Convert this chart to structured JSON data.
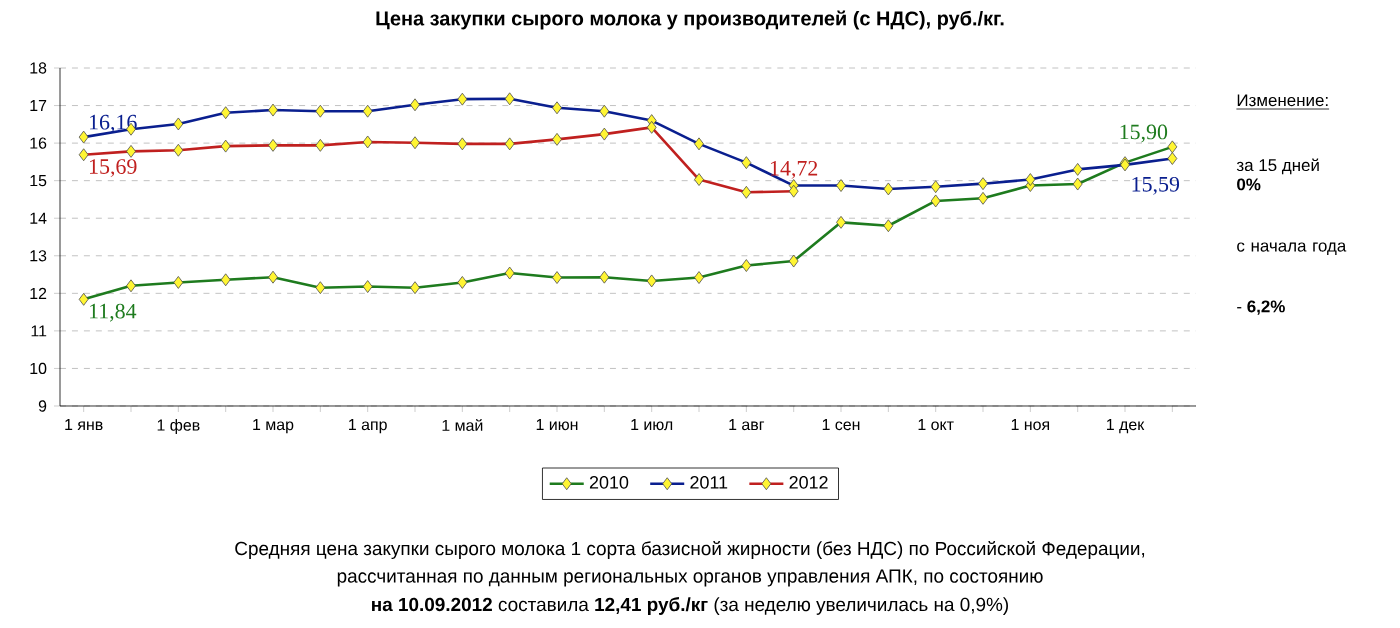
{
  "chart_data": {
    "type": "line",
    "title": "Цена закупки сырого молока у производителей (с НДС), руб./кг.",
    "categories": [
      "1 янв",
      null,
      "1 фев",
      null,
      "1 мар",
      null,
      "1 апр",
      null,
      "1 май",
      null,
      "1 июн",
      null,
      "1 июл",
      null,
      "1 авг",
      null,
      "1 сен",
      null,
      "1 окт",
      null,
      "1 ноя",
      null,
      "1 дек",
      null
    ],
    "series": [
      {
        "name": "2010",
        "color": "#1e7b1e",
        "values": [
          11.84,
          12.2,
          12.29,
          12.36,
          12.43,
          12.15,
          12.18,
          12.15,
          12.29,
          12.54,
          12.42,
          12.43,
          12.33,
          12.42,
          12.74,
          12.86,
          13.89,
          13.8,
          14.46,
          14.53,
          14.87,
          14.91,
          15.48,
          15.9
        ],
        "value_labels": [
          "11,84",
          null,
          null,
          null,
          null,
          null,
          null,
          null,
          null,
          null,
          null,
          null,
          null,
          null,
          null,
          null,
          null,
          null,
          null,
          null,
          null,
          null,
          null,
          "15,90"
        ]
      },
      {
        "name": "2011",
        "color": "#0a1f8f",
        "values": [
          16.16,
          16.37,
          16.51,
          16.81,
          16.88,
          16.85,
          16.85,
          17.02,
          17.17,
          17.18,
          16.94,
          16.85,
          16.6,
          15.98,
          15.48,
          14.87,
          14.87,
          14.78,
          14.84,
          14.92,
          15.03,
          15.3,
          15.42,
          15.59
        ],
        "value_labels": [
          "16,16",
          null,
          null,
          null,
          null,
          null,
          null,
          null,
          null,
          null,
          null,
          null,
          null,
          null,
          null,
          null,
          null,
          null,
          null,
          null,
          null,
          null,
          null,
          "15,59"
        ]
      },
      {
        "name": "2012",
        "color": "#c0201f",
        "values": [
          15.69,
          15.78,
          15.81,
          15.92,
          15.94,
          15.94,
          16.03,
          16.01,
          15.98,
          15.98,
          16.1,
          16.24,
          16.42,
          15.03,
          14.69,
          14.72,
          null,
          null,
          null,
          null,
          null,
          null,
          null,
          null
        ],
        "value_labels": [
          "15,69",
          null,
          null,
          null,
          null,
          null,
          null,
          null,
          null,
          null,
          null,
          null,
          null,
          null,
          null,
          "14,72",
          null,
          null,
          null,
          null,
          null,
          null,
          null,
          null
        ]
      }
    ],
    "ylim": [
      9,
      18
    ],
    "yticks": [
      9,
      10,
      11,
      12,
      13,
      14,
      15,
      16,
      17,
      18
    ],
    "grid": "y",
    "legend": "bottom",
    "marker": "diamond",
    "line_style": "solid",
    "annotations": [
      "Изменение:",
      "за 15 дней",
      "**0%**",
      "с начала года",
      "- **6,2%**",
      "Средняя цена закупки сырого молока 1 сорта базисной жирности (без НДС) по Российской Федерации,",
      "рассчитанная по данным региональных органов управления АПК, по состоянию",
      "**на 10.09.2012** составила **12,41 руб./кг** (за неделю увеличилась на 0,9%)"
    ]
  }
}
